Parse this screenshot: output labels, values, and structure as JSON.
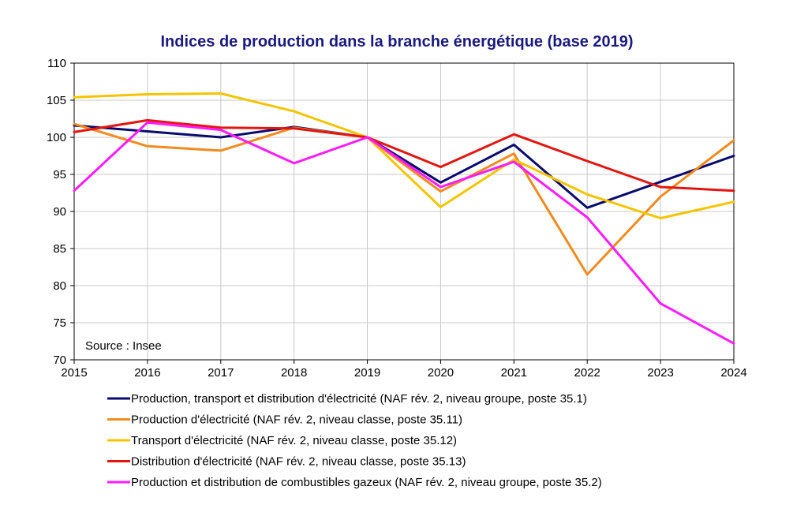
{
  "chart_data": {
    "type": "line",
    "title": "Indices de production dans la branche énergétique (base 2019)",
    "source": "Source : Insee",
    "x": [
      "2015",
      "2016",
      "2017",
      "2018",
      "2019",
      "2020",
      "2021",
      "2022",
      "2023",
      "2024"
    ],
    "ylim": [
      70,
      110
    ],
    "yticks": [
      "70",
      "75",
      "80",
      "85",
      "90",
      "95",
      "100",
      "105",
      "110"
    ],
    "grid": true,
    "legend_position": "bottom",
    "series": [
      {
        "name": "Production, transport et distribution d'électricité (NAF rév. 2, niveau groupe, poste 35.1)",
        "color": "#0a0a6e",
        "values": [
          101.6,
          100.8,
          100.0,
          101.4,
          100.0,
          93.9,
          99.0,
          90.5,
          94.0,
          97.5
        ]
      },
      {
        "name": "Production d'électricité (NAF rév. 2, niveau classe, poste 35.11)",
        "color": "#f28a1e",
        "values": [
          101.8,
          98.8,
          98.2,
          101.3,
          100.0,
          92.7,
          97.8,
          81.5,
          92.0,
          99.6
        ]
      },
      {
        "name": "Transport d'électricité (NAF rév. 2, niveau classe, poste 35.12)",
        "color": "#f5c400",
        "values": [
          105.4,
          105.8,
          105.9,
          103.5,
          100.0,
          90.6,
          97.0,
          92.3,
          89.1,
          91.3
        ]
      },
      {
        "name": "Distribution d'électricité (NAF rév. 2, niveau classe, poste 35.13)",
        "color": "#e3160f",
        "values": [
          100.7,
          102.3,
          101.3,
          101.2,
          100.0,
          96.0,
          100.4,
          96.8,
          93.3,
          92.8
        ]
      },
      {
        "name": "Production et distribution de combustibles gazeux (NAF rév. 2, niveau groupe, poste 35.2)",
        "color": "#ff1aff",
        "values": [
          92.8,
          102.0,
          101.0,
          96.5,
          100.0,
          93.3,
          96.7,
          89.2,
          77.6,
          72.2
        ]
      }
    ]
  }
}
